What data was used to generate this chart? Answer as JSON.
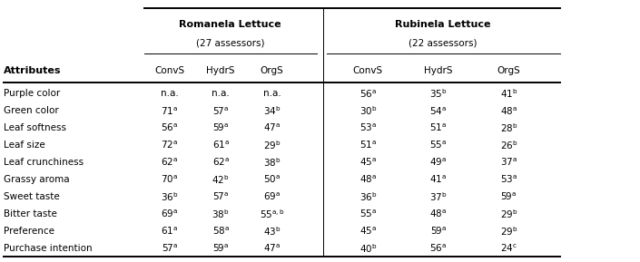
{
  "col_group1": "Romanela Lettuce",
  "col_group1_sub": "(27 assessors)",
  "col_group2": "Rubinela Lettuce",
  "col_group2_sub": "(22 assessors)",
  "subcols": [
    "ConvS",
    "HydrS",
    "OrgS"
  ],
  "row_header": "Attributes",
  "rows": [
    "Purple color",
    "Green color",
    "Leaf softness",
    "Leaf size",
    "Leaf crunchiness",
    "Grassy aroma",
    "Sweet taste",
    "Bitter taste",
    "Preference",
    "Purchase intention"
  ],
  "data_raw": [
    [
      "n.a.",
      "n.a.",
      "n.a.",
      "56",
      "35",
      "41"
    ],
    [
      "71",
      "57",
      "34",
      "30",
      "54",
      "48"
    ],
    [
      "56",
      "59",
      "47",
      "53",
      "51",
      "28"
    ],
    [
      "72",
      "61",
      "29",
      "51",
      "55",
      "26"
    ],
    [
      "62",
      "62",
      "38",
      "45",
      "49",
      "37"
    ],
    [
      "70",
      "42",
      "50",
      "48",
      "41",
      "53"
    ],
    [
      "36",
      "57",
      "69",
      "36",
      "37",
      "59"
    ],
    [
      "69",
      "38",
      "55",
      "55",
      "48",
      "29"
    ],
    [
      "61",
      "58",
      "43",
      "45",
      "59",
      "29"
    ],
    [
      "57",
      "59",
      "47",
      "40",
      "56",
      "24"
    ]
  ],
  "superscripts": [
    [
      "",
      "",
      "",
      "a",
      "b",
      "b"
    ],
    [
      "a",
      "a",
      "b",
      "b",
      "a",
      "a"
    ],
    [
      "a",
      "a",
      "a",
      "a",
      "a",
      "b"
    ],
    [
      "a",
      "a",
      "b",
      "a",
      "a",
      "b"
    ],
    [
      "a",
      "a",
      "b",
      "a",
      "a",
      "a"
    ],
    [
      "a",
      "b",
      "a",
      "a",
      "a",
      "a"
    ],
    [
      "b",
      "a",
      "a",
      "b",
      "b",
      "a"
    ],
    [
      "a",
      "b",
      "a,b",
      "a",
      "a",
      "b"
    ],
    [
      "a",
      "a",
      "b",
      "a",
      "a",
      "b"
    ],
    [
      "a",
      "a",
      "a",
      "b",
      "a",
      "c"
    ]
  ],
  "background_color": "#ffffff",
  "fontsize": 7.5,
  "bold_fontsize": 8.0,
  "lw_thick": 1.4,
  "lw_thin": 0.7
}
